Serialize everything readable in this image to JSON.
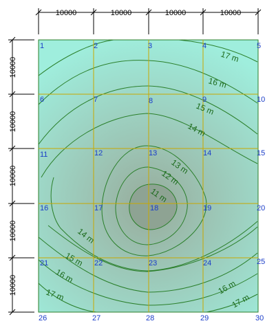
{
  "map": {
    "units": "m",
    "colors": {
      "outer_fill": "#9feedd",
      "inner_fill": "#97ab9b",
      "grid_line": "#c8a800",
      "contour_line": "#2a7f2a",
      "contour_label": "#1d6b1d",
      "node_label": "#1a3cc8",
      "dimension_line": "#000000"
    },
    "dimensions": {
      "top": [
        "10000",
        "10000",
        "10000",
        "10000"
      ],
      "left": [
        "10000",
        "10000",
        "10000",
        "10000",
        "10000"
      ]
    },
    "node_labels": [
      "1",
      "2",
      "3",
      "4",
      "5",
      "6",
      "7",
      "8",
      "9",
      "10",
      "11",
      "12",
      "13",
      "14",
      "15",
      "16",
      "17",
      "18",
      "19",
      "20",
      "21",
      "22",
      "23",
      "24",
      "25",
      "26",
      "27",
      "28",
      "29",
      "30"
    ],
    "contour_labels": [
      "17 m",
      "16 m",
      "15 m",
      "14 m",
      "13 m",
      "12 m",
      "11 m",
      "14 m",
      "15 m",
      "16 m",
      "17 m",
      "16 m",
      "17 m"
    ]
  }
}
